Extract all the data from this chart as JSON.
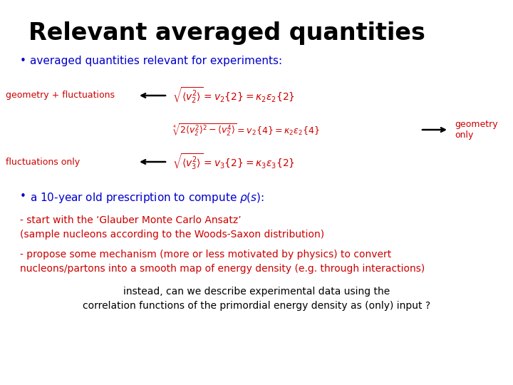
{
  "title": "Relevant averaged quantities",
  "title_color": "#000000",
  "title_fontsize": 24,
  "background_color": "#ffffff",
  "bullet1_color": "#0000cc",
  "bullet1_text": "averaged quantities relevant for experiments:",
  "label_color": "#cc0000",
  "label_geom_fluct": "geometry + fluctuations",
  "label_geom_only": "geometry\nonly",
  "label_fluct_only": "fluctuations only",
  "eq1": "$\\sqrt{\\langle v_2^2 \\rangle} = v_2\\{2\\} = \\kappa_2 \\varepsilon_2\\{2\\}$",
  "eq2": "$\\sqrt[4]{2\\langle v_2^2 \\rangle^2 - \\langle v_2^4 \\rangle} = v_2\\{4\\} = \\kappa_2 \\varepsilon_2\\{4\\}$",
  "eq3": "$\\sqrt{\\langle v_3^2 \\rangle} = v_3\\{2\\} = \\kappa_3 \\varepsilon_3\\{2\\}$",
  "bullet2_color": "#0000cc",
  "bullet2_text": "a 10-year old prescription to compute $\\rho(s)$:",
  "red_text1a": "- start with the ‘Glauber Monte Carlo Ansatz’",
  "red_text1b": "(sample nucleons according to the Woods-Saxon distribution)",
  "red_text2a": "- propose some mechanism (more or less motivated by physics) to convert",
  "red_text2b": "nucleons/partons into a smooth map of energy density (e.g. through interactions)",
  "black_text1": "instead, can we describe experimental data using the",
  "black_text2": "correlation functions of the primordial energy density as (only) input ?"
}
